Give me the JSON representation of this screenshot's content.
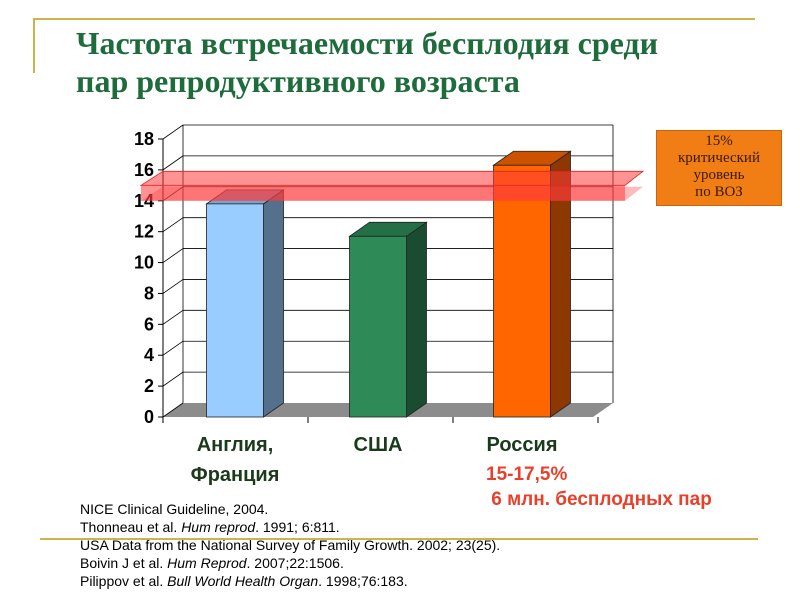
{
  "slide": {
    "title_line1": "Частота встречаемости бесплодия среди",
    "title_line2": "пар репродуктивного возраста",
    "callout": [
      "15%",
      "критический",
      "уровень",
      "по ВОЗ"
    ],
    "russia_note_line1": "15-17,5%",
    "russia_note_line2": " 6 млн. бесплодных пар",
    "references": [
      {
        "pre": "NICE Clinical Guideline, 2004.",
        "em": "",
        "post": ""
      },
      {
        "pre": "Thonneau et al. ",
        "em": "Hum reprod",
        "post": ". 1991; 6:811."
      },
      {
        "pre": "USA Data from the National Survey of Family Growth. 2002; 23(25).",
        "em": "",
        "post": ""
      },
      {
        "pre": "Boivin J et al. ",
        "em": "Hum Reprod",
        "post": ". 2007;22:1506."
      },
      {
        "pre": "Pilippov et al. ",
        "em": "Bull World Health Organ",
        "post": ". 1998;76:183."
      }
    ]
  },
  "chart_data": {
    "type": "bar",
    "categories": [
      [
        "Англия,",
        "Франция"
      ],
      [
        "США"
      ],
      [
        "Россия"
      ]
    ],
    "values": [
      13.8,
      11.7,
      16.3
    ],
    "bar_colors": [
      "#99ccff",
      "#2e8b57",
      "#ff6600"
    ],
    "yticks": [
      "0",
      "2",
      "4",
      "6",
      "8",
      "10",
      "12",
      "14",
      "16",
      "18"
    ],
    "ylim": [
      0,
      18
    ],
    "reference_band": {
      "from": 14,
      "to": 15,
      "color": "#ff3b3b"
    },
    "grid": true,
    "three_d": true
  }
}
